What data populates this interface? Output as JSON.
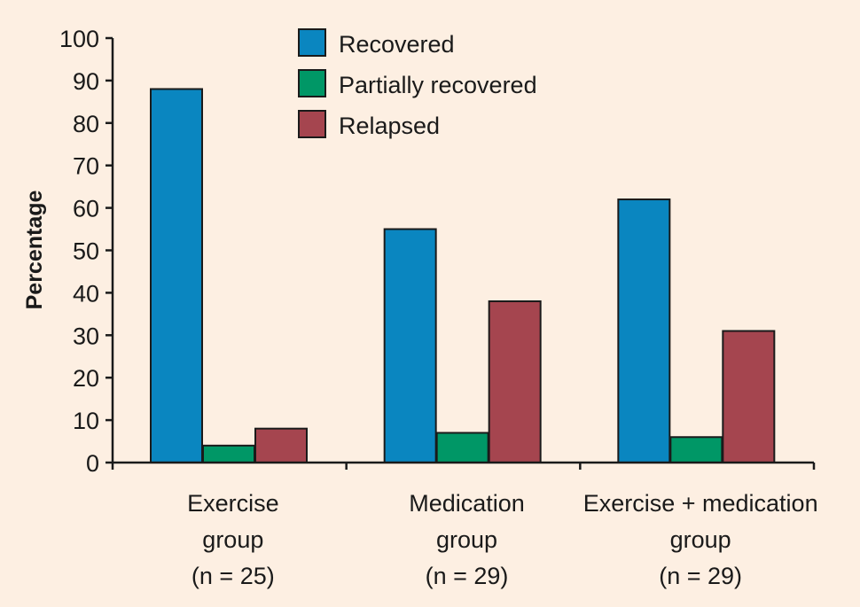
{
  "chart_data": {
    "type": "bar",
    "title": "",
    "xlabel": "",
    "ylabel": "Percentage",
    "ylim": [
      0,
      100
    ],
    "yticks": [
      0,
      10,
      20,
      30,
      40,
      50,
      60,
      70,
      80,
      90,
      100
    ],
    "categories": [
      [
        "Exercise",
        "group",
        "(n = 25)"
      ],
      [
        "Medication",
        "group",
        "(n = 29)"
      ],
      [
        "Exercise + medication",
        "group",
        "(n = 29)"
      ]
    ],
    "series": [
      {
        "name": "Recovered",
        "color": "#0a86c0",
        "values": [
          88,
          55,
          62
        ]
      },
      {
        "name": "Partially recovered",
        "color": "#009766",
        "values": [
          4,
          7,
          6
        ]
      },
      {
        "name": "Relapsed",
        "color": "#a5454f",
        "values": [
          8,
          38,
          31
        ]
      }
    ],
    "legend_position": "top-center",
    "grid": false
  }
}
